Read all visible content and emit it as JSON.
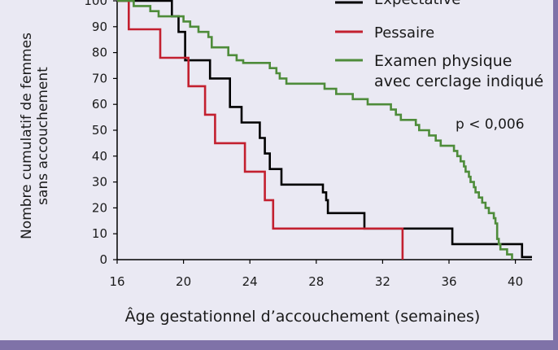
{
  "chart_data": {
    "type": "line",
    "step": true,
    "ylabel": [
      "Nombre cumulatif de femmes",
      "sans accouchement"
    ],
    "xlabel": "Âge gestationnel d’accouchement (semaines)",
    "annotation": "p < 0,006",
    "xlim": [
      16,
      41
    ],
    "ylim": [
      0,
      100
    ],
    "xticks": [
      16,
      20,
      24,
      28,
      32,
      36,
      40
    ],
    "yticks": [
      0,
      10,
      20,
      30,
      40,
      50,
      60,
      70,
      80,
      90,
      100
    ],
    "legend_position": "top-right",
    "series": [
      {
        "name": "Expectative",
        "color": "#000000",
        "points": [
          [
            16,
            100
          ],
          [
            19.3,
            100
          ],
          [
            19.3,
            94
          ],
          [
            19.7,
            94
          ],
          [
            19.7,
            88
          ],
          [
            20.1,
            88
          ],
          [
            20.1,
            77
          ],
          [
            21.6,
            77
          ],
          [
            21.6,
            70
          ],
          [
            22.8,
            70
          ],
          [
            22.8,
            59
          ],
          [
            23.5,
            59
          ],
          [
            23.5,
            53
          ],
          [
            24.6,
            53
          ],
          [
            24.6,
            47
          ],
          [
            24.9,
            47
          ],
          [
            24.9,
            41
          ],
          [
            25.2,
            41
          ],
          [
            25.2,
            35
          ],
          [
            25.9,
            35
          ],
          [
            25.9,
            29
          ],
          [
            28.4,
            29
          ],
          [
            28.4,
            26
          ],
          [
            28.6,
            26
          ],
          [
            28.6,
            23
          ],
          [
            28.7,
            23
          ],
          [
            28.7,
            18
          ],
          [
            30.9,
            18
          ],
          [
            30.9,
            12
          ],
          [
            36.2,
            12
          ],
          [
            36.2,
            6
          ],
          [
            40.4,
            6
          ],
          [
            40.4,
            1
          ],
          [
            41,
            1
          ]
        ]
      },
      {
        "name": "Pessaire",
        "color": "#c3202f",
        "points": [
          [
            16,
            100
          ],
          [
            16.7,
            100
          ],
          [
            16.7,
            89
          ],
          [
            18.6,
            89
          ],
          [
            18.6,
            78
          ],
          [
            20.3,
            78
          ],
          [
            20.3,
            67
          ],
          [
            21.3,
            67
          ],
          [
            21.3,
            56
          ],
          [
            21.9,
            56
          ],
          [
            21.9,
            45
          ],
          [
            23.7,
            45
          ],
          [
            23.7,
            34
          ],
          [
            24.9,
            34
          ],
          [
            24.9,
            23
          ],
          [
            25.4,
            23
          ],
          [
            25.4,
            12
          ],
          [
            33.2,
            12
          ],
          [
            33.2,
            0
          ]
        ]
      },
      {
        "name_lines": [
          "Examen physique",
          "avec cerclage indiqué"
        ],
        "color": "#4e8c3a",
        "points": [
          [
            16,
            100
          ],
          [
            17,
            100
          ],
          [
            17,
            98
          ],
          [
            18,
            98
          ],
          [
            18,
            96
          ],
          [
            18.5,
            96
          ],
          [
            18.5,
            94
          ],
          [
            20,
            94
          ],
          [
            20,
            92
          ],
          [
            20.4,
            92
          ],
          [
            20.4,
            90
          ],
          [
            20.9,
            90
          ],
          [
            20.9,
            88
          ],
          [
            21.5,
            88
          ],
          [
            21.5,
            86
          ],
          [
            21.7,
            86
          ],
          [
            21.7,
            82
          ],
          [
            22.7,
            82
          ],
          [
            22.7,
            79
          ],
          [
            23.2,
            79
          ],
          [
            23.2,
            77
          ],
          [
            23.6,
            77
          ],
          [
            23.6,
            76
          ],
          [
            25.2,
            76
          ],
          [
            25.2,
            74
          ],
          [
            25.6,
            74
          ],
          [
            25.6,
            72
          ],
          [
            25.8,
            72
          ],
          [
            25.8,
            70
          ],
          [
            26.2,
            70
          ],
          [
            26.2,
            68
          ],
          [
            28.5,
            68
          ],
          [
            28.5,
            66
          ],
          [
            29.2,
            66
          ],
          [
            29.2,
            64
          ],
          [
            30.2,
            64
          ],
          [
            30.2,
            62
          ],
          [
            31.1,
            62
          ],
          [
            31.1,
            60
          ],
          [
            32.5,
            60
          ],
          [
            32.5,
            58
          ],
          [
            32.8,
            58
          ],
          [
            32.8,
            56
          ],
          [
            33.1,
            56
          ],
          [
            33.1,
            54
          ],
          [
            34,
            54
          ],
          [
            34,
            52
          ],
          [
            34.2,
            52
          ],
          [
            34.2,
            50
          ],
          [
            34.8,
            50
          ],
          [
            34.8,
            48
          ],
          [
            35.2,
            48
          ],
          [
            35.2,
            46
          ],
          [
            35.5,
            46
          ],
          [
            35.5,
            44
          ],
          [
            36.3,
            44
          ],
          [
            36.3,
            42
          ],
          [
            36.5,
            42
          ],
          [
            36.5,
            40
          ],
          [
            36.7,
            40
          ],
          [
            36.7,
            38
          ],
          [
            36.9,
            38
          ],
          [
            36.9,
            36
          ],
          [
            37,
            36
          ],
          [
            37,
            34
          ],
          [
            37.2,
            34
          ],
          [
            37.2,
            32
          ],
          [
            37.3,
            32
          ],
          [
            37.3,
            30
          ],
          [
            37.5,
            30
          ],
          [
            37.5,
            28
          ],
          [
            37.6,
            28
          ],
          [
            37.6,
            26
          ],
          [
            37.8,
            26
          ],
          [
            37.8,
            24
          ],
          [
            38,
            24
          ],
          [
            38,
            22
          ],
          [
            38.2,
            22
          ],
          [
            38.2,
            20
          ],
          [
            38.4,
            20
          ],
          [
            38.4,
            18
          ],
          [
            38.7,
            18
          ],
          [
            38.7,
            16
          ],
          [
            38.8,
            16
          ],
          [
            38.8,
            14
          ],
          [
            38.9,
            14
          ],
          [
            38.9,
            12
          ],
          [
            38.9,
            10
          ],
          [
            38.9,
            8
          ],
          [
            39,
            8
          ],
          [
            39,
            6
          ],
          [
            39.1,
            6
          ],
          [
            39.1,
            4
          ],
          [
            39.5,
            4
          ],
          [
            39.5,
            2
          ],
          [
            39.8,
            2
          ],
          [
            39.8,
            0
          ]
        ]
      }
    ]
  }
}
